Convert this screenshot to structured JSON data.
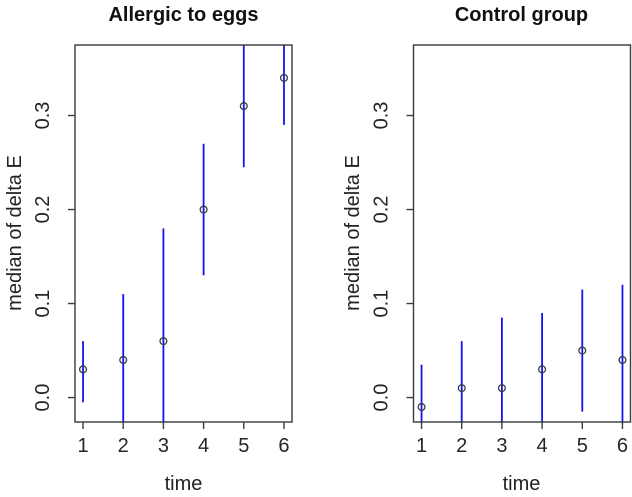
{
  "figure": {
    "background": "#ffffff",
    "colors": {
      "errorbar": "#1414f0",
      "point": "#3c3c3c",
      "axis": "#3a3a3a",
      "text": "#252525"
    }
  },
  "chart_data": [
    {
      "type": "scatter",
      "subtype": "median-with-error-bars",
      "title": "Allergic to eggs",
      "xlabel": "time",
      "ylabel": "median of delta E",
      "x": [
        1,
        2,
        3,
        4,
        5,
        6
      ],
      "x_tick_labels": [
        "1",
        "2",
        "3",
        "4",
        "5",
        "6"
      ],
      "y_ticks": [
        0.0,
        0.1,
        0.2,
        0.3
      ],
      "y_tick_labels": [
        "0.0",
        "0.1",
        "0.2",
        "0.3"
      ],
      "xlim": [
        0.8,
        6.2
      ],
      "ylim": [
        -0.026,
        0.375
      ],
      "grid": false,
      "legend": false,
      "series": [
        {
          "name": "median",
          "median": [
            0.03,
            0.04,
            0.06,
            0.2,
            0.31,
            0.34
          ],
          "ci_lower": [
            -0.005,
            null,
            null,
            0.13,
            0.245,
            0.29
          ],
          "ci_upper": [
            0.06,
            0.11,
            0.18,
            0.27,
            null,
            null
          ]
        }
      ],
      "note": "null CI bound = error bar clipped at plot box edge"
    },
    {
      "type": "scatter",
      "subtype": "median-with-error-bars",
      "title": "Control group",
      "xlabel": "time",
      "ylabel": "median of delta E",
      "x": [
        1,
        2,
        3,
        4,
        5,
        6
      ],
      "x_tick_labels": [
        "1",
        "2",
        "3",
        "4",
        "5",
        "6"
      ],
      "y_ticks": [
        0.0,
        0.1,
        0.2,
        0.3
      ],
      "y_tick_labels": [
        "0.0",
        "0.1",
        "0.2",
        "0.3"
      ],
      "xlim": [
        0.8,
        6.2
      ],
      "ylim": [
        -0.026,
        0.375
      ],
      "grid": false,
      "legend": false,
      "series": [
        {
          "name": "median",
          "median": [
            -0.01,
            0.01,
            0.01,
            0.03,
            0.05,
            0.04
          ],
          "ci_lower": [
            null,
            null,
            null,
            null,
            -0.015,
            null
          ],
          "ci_upper": [
            0.035,
            0.06,
            0.085,
            0.09,
            0.115,
            0.12
          ]
        }
      ],
      "note": "null CI bound = error bar clipped at plot box edge"
    }
  ]
}
